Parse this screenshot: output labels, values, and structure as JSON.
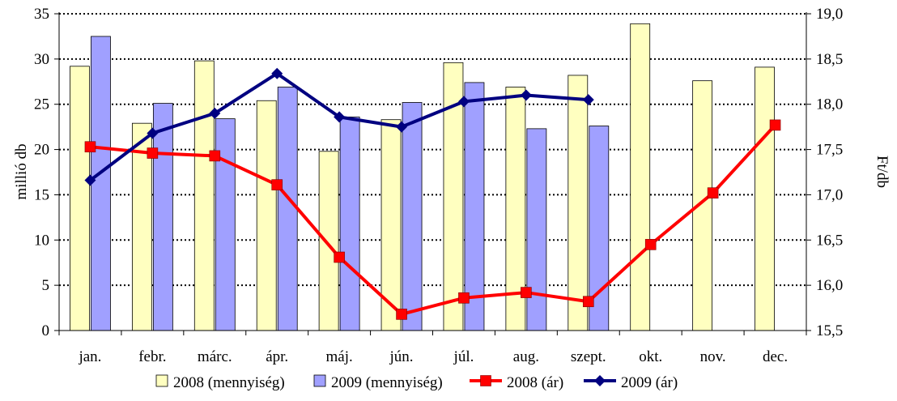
{
  "chart_data": {
    "type": "bar+line",
    "categories": [
      "jan.",
      "febr.",
      "márc.",
      "ápr.",
      "máj.",
      "jún.",
      "júl.",
      "aug.",
      "szept.",
      "okt.",
      "nov.",
      "dec."
    ],
    "y_left": {
      "label": "millió db",
      "min": 0,
      "max": 35,
      "step": 5,
      "ticks": [
        "0",
        "5",
        "10",
        "15",
        "20",
        "25",
        "30",
        "35"
      ]
    },
    "y_right": {
      "label": "Ft/db",
      "min": 15.5,
      "max": 19.0,
      "step": 0.5,
      "ticks": [
        "15,5",
        "16,0",
        "16,5",
        "17,0",
        "17,5",
        "18,0",
        "18,5",
        "19,0"
      ]
    },
    "grid": "horizontal dotted",
    "legend_position": "bottom",
    "bar_series": [
      {
        "name": "2008 (mennyiség)",
        "color": "#ffffc0",
        "values": [
          29.2,
          22.9,
          29.8,
          25.4,
          19.8,
          23.3,
          29.6,
          26.9,
          28.2,
          33.9,
          27.6,
          29.1
        ]
      },
      {
        "name": "2009 (mennyiség)",
        "color": "#a0a0ff",
        "values": [
          32.5,
          25.1,
          23.4,
          26.9,
          23.6,
          25.2,
          27.4,
          22.3,
          22.6,
          null,
          null,
          null
        ]
      }
    ],
    "line_series": [
      {
        "name": "2008 (ár)",
        "color": "#ff0000",
        "marker": "square",
        "axis": "right",
        "values": [
          17.53,
          17.46,
          17.43,
          17.11,
          16.31,
          15.68,
          15.86,
          15.92,
          15.82,
          16.45,
          17.02,
          17.77
        ]
      },
      {
        "name": "2009 (ár)",
        "color": "#000080",
        "marker": "diamond",
        "axis": "right",
        "values": [
          17.16,
          17.68,
          17.9,
          18.34,
          17.86,
          17.75,
          18.03,
          18.1,
          18.05,
          null,
          null,
          null
        ]
      }
    ]
  }
}
